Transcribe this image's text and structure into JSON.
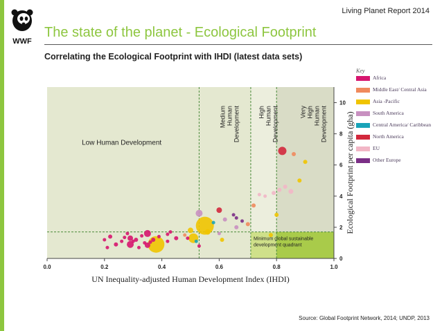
{
  "header": {
    "report_title": "Living Planet Report 2014",
    "main_title": "The state of the planet - Ecological Footprint",
    "subtitle": "Correlating the Ecological Footprint with IHDI (latest data sets)",
    "logo_text": "WWF"
  },
  "footer": {
    "source": "Source: Global Footprint Network, 2014; UNDP, 2013"
  },
  "legend": {
    "title": "Key",
    "items": [
      {
        "label": "Africa",
        "color": "#d6156e"
      },
      {
        "label": "Middle East/ Central Asia",
        "color": "#f08a5d"
      },
      {
        "label": "Asia -Pacific",
        "color": "#f0c400"
      },
      {
        "label": "South America",
        "color": "#c890c0"
      },
      {
        "label": "Central America/ Caribbean",
        "color": "#19a3b8"
      },
      {
        "label": "North America",
        "color": "#d2283c"
      },
      {
        "label": "EU",
        "color": "#f2b6c6"
      },
      {
        "label": "Other Europe",
        "color": "#7b2f86"
      }
    ]
  },
  "chart_data": {
    "type": "scatter",
    "title": "Correlating the Ecological Footprint with IHDI (latest data sets)",
    "xlabel": "UN Inequality-adjusted Human Development Index (IHDI)",
    "ylabel": "Ecological Footprint per capita (gha)",
    "xlim": [
      0,
      1.0
    ],
    "ylim": [
      0,
      11
    ],
    "x_ticks": [
      "0.0",
      "0.2",
      "0.4",
      "0.6",
      "0.8",
      "1.0"
    ],
    "y_ticks": [
      "0",
      "2",
      "4",
      "6",
      "8",
      "10"
    ],
    "region_lines": [
      0.53,
      0.71,
      0.8
    ],
    "biocapacity_line": 1.7,
    "region_labels": [
      {
        "label": "Low Human Development",
        "x": 0.26,
        "y": 7.3
      },
      {
        "label": "Medium Human Development",
        "x": 0.62,
        "y": 9.8
      },
      {
        "label": "High Human Development",
        "x": 0.755,
        "y": 9.8
      },
      {
        "label": "Very High Human Development",
        "x": 0.9,
        "y": 9.8
      }
    ],
    "quadrant_label": "Minimum global sustainable development quadrant",
    "points": [
      {
        "x": 0.38,
        "y": 0.9,
        "size": 12,
        "region": "Asia -Pacific"
      },
      {
        "x": 0.55,
        "y": 2.1,
        "size": 13,
        "region": "Asia -Pacific"
      },
      {
        "x": 0.51,
        "y": 1.3,
        "size": 7,
        "region": "Asia -Pacific"
      },
      {
        "x": 0.5,
        "y": 1.8,
        "size": 4,
        "region": "Asia -Pacific"
      },
      {
        "x": 0.56,
        "y": 1.7,
        "size": 4,
        "region": "Asia -Pacific"
      },
      {
        "x": 0.61,
        "y": 1.2,
        "size": 3,
        "region": "Asia -Pacific"
      },
      {
        "x": 0.78,
        "y": 1.5,
        "size": 3,
        "region": "Asia -Pacific"
      },
      {
        "x": 0.8,
        "y": 2.8,
        "size": 3,
        "region": "Asia -Pacific"
      },
      {
        "x": 0.9,
        "y": 6.2,
        "size": 3,
        "region": "Asia -Pacific"
      },
      {
        "x": 0.88,
        "y": 5.0,
        "size": 3,
        "region": "Asia -Pacific"
      },
      {
        "x": 0.53,
        "y": 2.9,
        "size": 5,
        "region": "South America"
      },
      {
        "x": 0.62,
        "y": 2.5,
        "size": 3,
        "region": "South America"
      },
      {
        "x": 0.66,
        "y": 2.0,
        "size": 3,
        "region": "South America"
      },
      {
        "x": 0.6,
        "y": 1.6,
        "size": 2.5,
        "region": "South America"
      },
      {
        "x": 0.58,
        "y": 2.3,
        "size": 2.5,
        "region": "Central America/ Caribbean"
      },
      {
        "x": 0.52,
        "y": 1.1,
        "size": 2.5,
        "region": "Central America/ Caribbean"
      },
      {
        "x": 0.6,
        "y": 3.1,
        "size": 4,
        "region": "North America"
      },
      {
        "x": 0.82,
        "y": 6.9,
        "size": 6,
        "region": "North America"
      },
      {
        "x": 0.86,
        "y": 6.7,
        "size": 3,
        "region": "Middle East/ Central Asia"
      },
      {
        "x": 0.72,
        "y": 3.4,
        "size": 3,
        "region": "Middle East/ Central Asia"
      },
      {
        "x": 0.48,
        "y": 1.5,
        "size": 2.5,
        "region": "Middle East/ Central Asia"
      },
      {
        "x": 0.7,
        "y": 2.2,
        "size": 3,
        "region": "Middle East/ Central Asia"
      },
      {
        "x": 0.85,
        "y": 4.3,
        "size": 3.5,
        "region": "EU"
      },
      {
        "x": 0.79,
        "y": 4.2,
        "size": 3,
        "region": "EU"
      },
      {
        "x": 0.76,
        "y": 4.0,
        "size": 2.5,
        "region": "EU"
      },
      {
        "x": 0.81,
        "y": 4.4,
        "size": 3,
        "region": "EU"
      },
      {
        "x": 0.74,
        "y": 4.1,
        "size": 2.5,
        "region": "EU"
      },
      {
        "x": 0.83,
        "y": 4.6,
        "size": 3,
        "region": "EU"
      },
      {
        "x": 0.66,
        "y": 2.6,
        "size": 2.5,
        "region": "Other Europe"
      },
      {
        "x": 0.68,
        "y": 2.4,
        "size": 2.5,
        "region": "Other Europe"
      },
      {
        "x": 0.65,
        "y": 2.8,
        "size": 2.5,
        "region": "Other Europe"
      },
      {
        "x": 0.29,
        "y": 0.9,
        "size": 5,
        "region": "Africa"
      },
      {
        "x": 0.29,
        "y": 1.3,
        "size": 4,
        "region": "Africa"
      },
      {
        "x": 0.35,
        "y": 1.6,
        "size": 5,
        "region": "Africa"
      },
      {
        "x": 0.35,
        "y": 0.85,
        "size": 4,
        "region": "Africa"
      },
      {
        "x": 0.24,
        "y": 0.9,
        "size": 3,
        "region": "Africa"
      },
      {
        "x": 0.31,
        "y": 1.2,
        "size": 3,
        "region": "Africa"
      },
      {
        "x": 0.22,
        "y": 1.4,
        "size": 3,
        "region": "Africa"
      },
      {
        "x": 0.33,
        "y": 1.45,
        "size": 2.5,
        "region": "Africa"
      },
      {
        "x": 0.26,
        "y": 1.1,
        "size": 2.5,
        "region": "Africa"
      },
      {
        "x": 0.3,
        "y": 1.1,
        "size": 2.5,
        "region": "Africa"
      },
      {
        "x": 0.37,
        "y": 1.2,
        "size": 3,
        "region": "Africa"
      },
      {
        "x": 0.42,
        "y": 1.1,
        "size": 2.5,
        "region": "Africa"
      },
      {
        "x": 0.45,
        "y": 1.3,
        "size": 3,
        "region": "Africa"
      },
      {
        "x": 0.28,
        "y": 1.6,
        "size": 2.5,
        "region": "Africa"
      },
      {
        "x": 0.2,
        "y": 1.2,
        "size": 2.5,
        "region": "Africa"
      },
      {
        "x": 0.39,
        "y": 1.4,
        "size": 2.5,
        "region": "Africa"
      },
      {
        "x": 0.34,
        "y": 1.0,
        "size": 2.5,
        "region": "Africa"
      },
      {
        "x": 0.43,
        "y": 1.7,
        "size": 2.5,
        "region": "Africa"
      },
      {
        "x": 0.49,
        "y": 1.3,
        "size": 2.5,
        "region": "Africa"
      },
      {
        "x": 0.21,
        "y": 0.7,
        "size": 2.5,
        "region": "Africa"
      },
      {
        "x": 0.32,
        "y": 0.7,
        "size": 2.5,
        "region": "Africa"
      },
      {
        "x": 0.27,
        "y": 1.35,
        "size": 2.5,
        "region": "Africa"
      },
      {
        "x": 0.36,
        "y": 1.05,
        "size": 2.5,
        "region": "Africa"
      },
      {
        "x": 0.53,
        "y": 0.8,
        "size": 2.5,
        "region": "Africa"
      },
      {
        "x": 0.42,
        "y": 1.55,
        "size": 2.5,
        "region": "Africa"
      }
    ]
  }
}
